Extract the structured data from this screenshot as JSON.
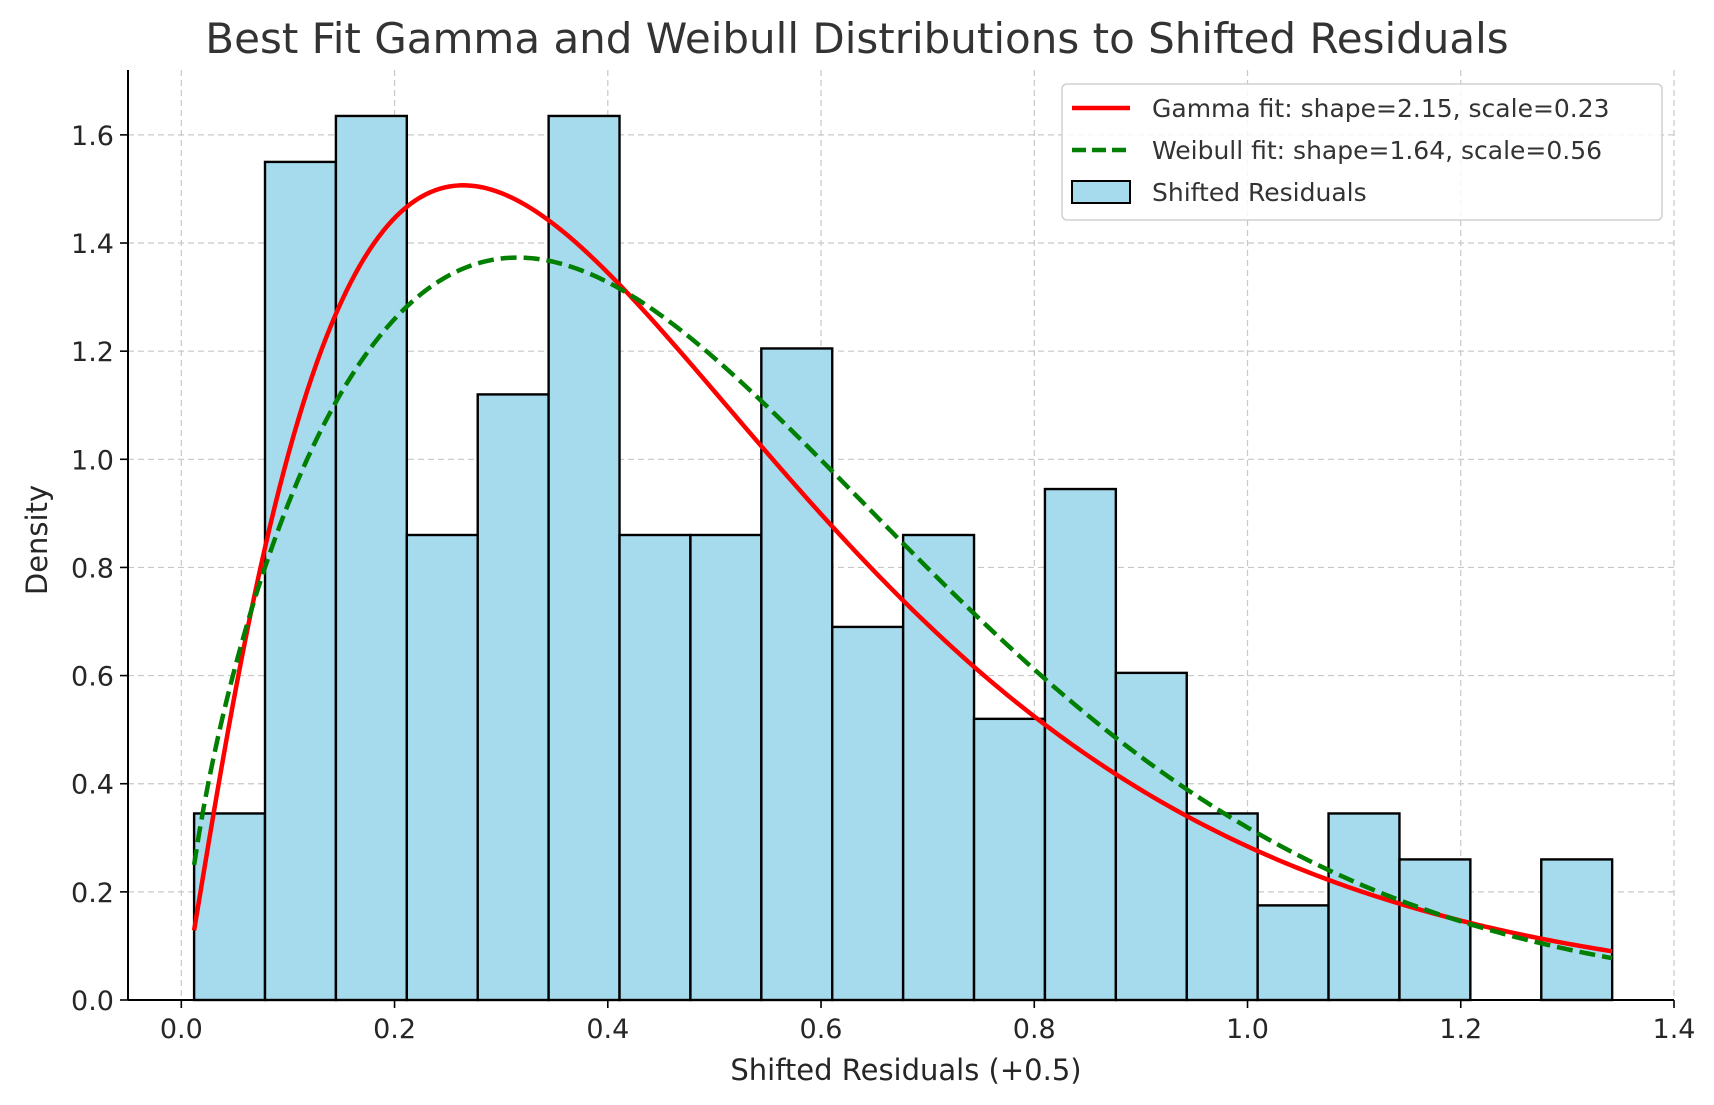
{
  "chart_data": {
    "type": "histogram",
    "title": "Best Fit Gamma and Weibull Distributions to Shifted Residuals",
    "xlabel": "Shifted Residuals (+0.5)",
    "ylabel": "Density",
    "xlim": [
      -0.05,
      1.4
    ],
    "ylim": [
      0.0,
      1.72
    ],
    "xticks": [
      0.0,
      0.2,
      0.4,
      0.6,
      0.8,
      1.0,
      1.2,
      1.4
    ],
    "xtick_labels": [
      "0.0",
      "0.2",
      "0.4",
      "0.6",
      "0.8",
      "1.0",
      "1.2",
      "1.4"
    ],
    "yticks": [
      0.0,
      0.2,
      0.4,
      0.6,
      0.8,
      1.0,
      1.2,
      1.4,
      1.6
    ],
    "ytick_labels": [
      "0.0",
      "0.2",
      "0.4",
      "0.6",
      "0.8",
      "1.0",
      "1.2",
      "1.4",
      "1.6"
    ],
    "grid": true,
    "legend_position": "top-right",
    "histogram": {
      "name": "Shifted Residuals",
      "color": "#a6dbee",
      "edge_color": "#000000",
      "bin_start": 0.012,
      "bin_end": 1.342,
      "densities": [
        0.345,
        1.55,
        1.635,
        0.86,
        1.12,
        1.635,
        0.86,
        0.86,
        1.205,
        0.69,
        0.86,
        0.52,
        0.945,
        0.605,
        0.345,
        0.175,
        0.345,
        0.26,
        0.0,
        0.26
      ]
    },
    "series": [
      {
        "name": "Gamma fit: shape=2.15, scale=0.23",
        "distribution": "gamma",
        "shape": 2.15,
        "scale": 0.23,
        "color": "#ff0000",
        "style": "solid",
        "x_range": [
          0.012,
          1.342
        ]
      },
      {
        "name": "Weibull fit: shape=1.64, scale=0.56",
        "distribution": "weibull",
        "shape": 1.64,
        "scale": 0.56,
        "color": "#007f00",
        "style": "dashed",
        "x_range": [
          0.012,
          1.342
        ]
      }
    ]
  }
}
